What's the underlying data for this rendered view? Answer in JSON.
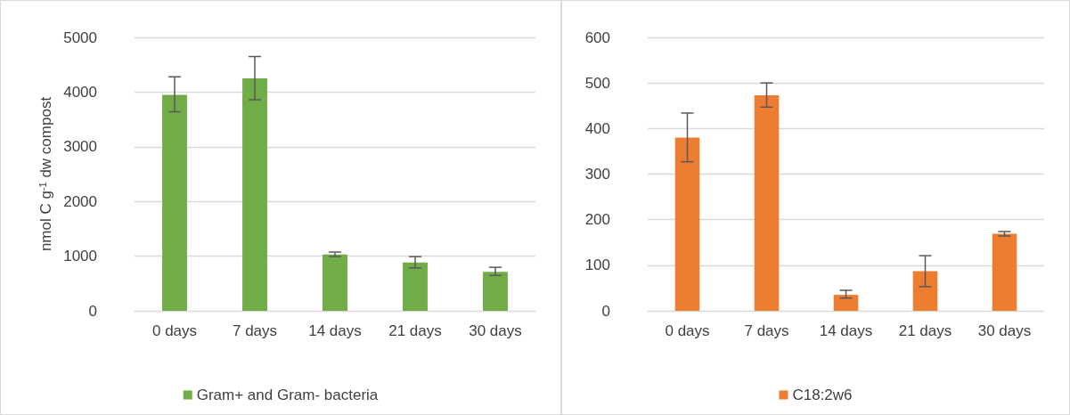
{
  "chart_data": [
    {
      "type": "bar",
      "ylabel": "nmol C g$^{-1}$ dw compost",
      "categories": [
        "0 days",
        "7 days",
        "14 days",
        "21 days",
        "30 days"
      ],
      "series": [
        {
          "name": "Gram+ and Gram- bacteria",
          "color": "#70ad47",
          "values": [
            3950,
            4250,
            1030,
            885,
            713
          ],
          "errors": [
            [
              3640,
              4280
            ],
            [
              3860,
              4650
            ],
            [
              990,
              1075
            ],
            [
              785,
              990
            ],
            [
              646,
              796
            ]
          ]
        }
      ],
      "ylim": [
        0,
        5000
      ],
      "yticks": [
        0,
        1000,
        2000,
        3000,
        4000,
        5000
      ],
      "grid": "y",
      "legend": "bottom"
    },
    {
      "type": "bar",
      "categories": [
        "0 days",
        "7 days",
        "14 days",
        "21 days",
        "30 days"
      ],
      "series": [
        {
          "name": "C18:2w6",
          "color": "#ed7d31",
          "values": [
            380,
            473,
            35,
            87,
            169
          ],
          "errors": [
            [
              327,
              434
            ],
            [
              447,
              500
            ],
            [
              28,
              45
            ],
            [
              53,
              121
            ],
            [
              164,
              174
            ]
          ]
        }
      ],
      "ylim": [
        0,
        600
      ],
      "yticks": [
        0,
        100,
        200,
        300,
        400,
        500,
        600
      ],
      "grid": "y",
      "legend": "bottom"
    }
  ]
}
